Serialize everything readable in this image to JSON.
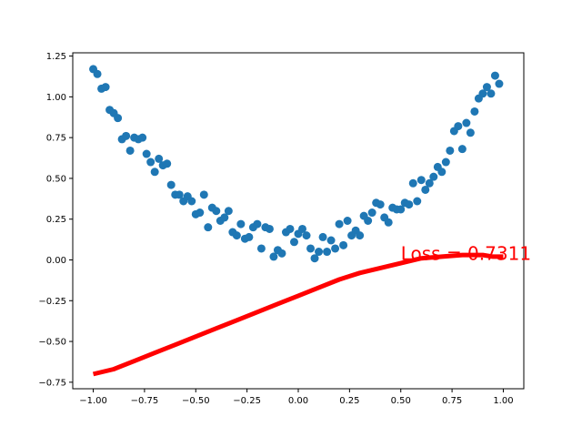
{
  "chart_data": {
    "type": "scatter",
    "title": "",
    "xlabel": "",
    "ylabel": "",
    "xlim": [
      -1.1,
      1.1
    ],
    "ylim": [
      -0.79,
      1.27
    ],
    "xticks": [
      -1.0,
      -0.75,
      -0.5,
      -0.25,
      0.0,
      0.25,
      0.5,
      0.75,
      1.0
    ],
    "xtick_labels": [
      "−1.00",
      "−0.75",
      "−0.50",
      "−0.25",
      "0.00",
      "0.25",
      "0.50",
      "0.75",
      "1.00"
    ],
    "yticks": [
      -0.75,
      -0.5,
      -0.25,
      0.0,
      0.25,
      0.5,
      0.75,
      1.0,
      1.25
    ],
    "ytick_labels": [
      "−0.75",
      "−0.50",
      "−0.25",
      "0.00",
      "0.25",
      "0.50",
      "0.75",
      "1.00",
      "1.25"
    ],
    "grid": false,
    "legend": "none",
    "series": [
      {
        "kind": "scatter",
        "color": "#1f77b4",
        "points": [
          [
            -1.0,
            1.17
          ],
          [
            -0.98,
            1.14
          ],
          [
            -0.96,
            1.05
          ],
          [
            -0.94,
            1.06
          ],
          [
            -0.92,
            0.92
          ],
          [
            -0.9,
            0.9
          ],
          [
            -0.88,
            0.87
          ],
          [
            -0.86,
            0.74
          ],
          [
            -0.84,
            0.76
          ],
          [
            -0.82,
            0.67
          ],
          [
            -0.8,
            0.75
          ],
          [
            -0.78,
            0.74
          ],
          [
            -0.76,
            0.75
          ],
          [
            -0.74,
            0.65
          ],
          [
            -0.72,
            0.6
          ],
          [
            -0.7,
            0.54
          ],
          [
            -0.68,
            0.62
          ],
          [
            -0.66,
            0.58
          ],
          [
            -0.64,
            0.59
          ],
          [
            -0.62,
            0.46
          ],
          [
            -0.6,
            0.4
          ],
          [
            -0.58,
            0.4
          ],
          [
            -0.56,
            0.36
          ],
          [
            -0.54,
            0.39
          ],
          [
            -0.52,
            0.36
          ],
          [
            -0.5,
            0.28
          ],
          [
            -0.48,
            0.29
          ],
          [
            -0.46,
            0.4
          ],
          [
            -0.44,
            0.2
          ],
          [
            -0.42,
            0.32
          ],
          [
            -0.4,
            0.3
          ],
          [
            -0.38,
            0.24
          ],
          [
            -0.36,
            0.26
          ],
          [
            -0.34,
            0.3
          ],
          [
            -0.32,
            0.17
          ],
          [
            -0.3,
            0.15
          ],
          [
            -0.28,
            0.22
          ],
          [
            -0.26,
            0.13
          ],
          [
            -0.24,
            0.14
          ],
          [
            -0.22,
            0.2
          ],
          [
            -0.2,
            0.22
          ],
          [
            -0.18,
            0.07
          ],
          [
            -0.16,
            0.2
          ],
          [
            -0.14,
            0.19
          ],
          [
            -0.12,
            0.02
          ],
          [
            -0.1,
            0.06
          ],
          [
            -0.08,
            0.04
          ],
          [
            -0.06,
            0.17
          ],
          [
            -0.04,
            0.19
          ],
          [
            -0.02,
            0.11
          ],
          [
            0.0,
            0.16
          ],
          [
            0.02,
            0.19
          ],
          [
            0.04,
            0.15
          ],
          [
            0.06,
            0.07
          ],
          [
            0.08,
            0.01
          ],
          [
            0.1,
            0.05
          ],
          [
            0.12,
            0.14
          ],
          [
            0.14,
            0.05
          ],
          [
            0.16,
            0.12
          ],
          [
            0.18,
            0.07
          ],
          [
            0.2,
            0.22
          ],
          [
            0.22,
            0.09
          ],
          [
            0.24,
            0.24
          ],
          [
            0.26,
            0.15
          ],
          [
            0.28,
            0.18
          ],
          [
            0.3,
            0.15
          ],
          [
            0.32,
            0.27
          ],
          [
            0.34,
            0.24
          ],
          [
            0.36,
            0.29
          ],
          [
            0.38,
            0.35
          ],
          [
            0.4,
            0.34
          ],
          [
            0.42,
            0.26
          ],
          [
            0.44,
            0.23
          ],
          [
            0.46,
            0.32
          ],
          [
            0.48,
            0.31
          ],
          [
            0.5,
            0.31
          ],
          [
            0.52,
            0.35
          ],
          [
            0.54,
            0.34
          ],
          [
            0.56,
            0.47
          ],
          [
            0.58,
            0.36
          ],
          [
            0.6,
            0.49
          ],
          [
            0.62,
            0.43
          ],
          [
            0.64,
            0.47
          ],
          [
            0.66,
            0.51
          ],
          [
            0.68,
            0.57
          ],
          [
            0.7,
            0.54
          ],
          [
            0.72,
            0.6
          ],
          [
            0.74,
            0.67
          ],
          [
            0.76,
            0.79
          ],
          [
            0.78,
            0.82
          ],
          [
            0.8,
            0.68
          ],
          [
            0.82,
            0.84
          ],
          [
            0.84,
            0.78
          ],
          [
            0.86,
            0.91
          ],
          [
            0.88,
            0.99
          ],
          [
            0.9,
            1.02
          ],
          [
            0.92,
            1.06
          ],
          [
            0.94,
            1.02
          ],
          [
            0.96,
            1.13
          ],
          [
            0.98,
            1.08
          ]
        ]
      },
      {
        "kind": "line",
        "color": "#ff0000",
        "points": [
          [
            -1.0,
            -0.7
          ],
          [
            -0.9,
            -0.67
          ],
          [
            -0.8,
            -0.62
          ],
          [
            -0.7,
            -0.57
          ],
          [
            -0.6,
            -0.52
          ],
          [
            -0.5,
            -0.47
          ],
          [
            -0.4,
            -0.42
          ],
          [
            -0.3,
            -0.37
          ],
          [
            -0.2,
            -0.32
          ],
          [
            -0.1,
            -0.27
          ],
          [
            0.0,
            -0.22
          ],
          [
            0.1,
            -0.17
          ],
          [
            0.2,
            -0.12
          ],
          [
            0.25,
            -0.1
          ],
          [
            0.3,
            -0.08
          ],
          [
            0.4,
            -0.05
          ],
          [
            0.5,
            -0.02
          ],
          [
            0.6,
            0.01
          ],
          [
            0.7,
            0.02
          ],
          [
            0.8,
            0.03
          ],
          [
            0.85,
            0.03
          ],
          [
            0.9,
            0.03
          ],
          [
            0.95,
            0.02
          ],
          [
            1.0,
            0.02
          ]
        ]
      }
    ],
    "annotation": {
      "text": "Loss = 0.7311",
      "x": 0.5,
      "y": 0.0,
      "color": "#ff0000"
    }
  }
}
